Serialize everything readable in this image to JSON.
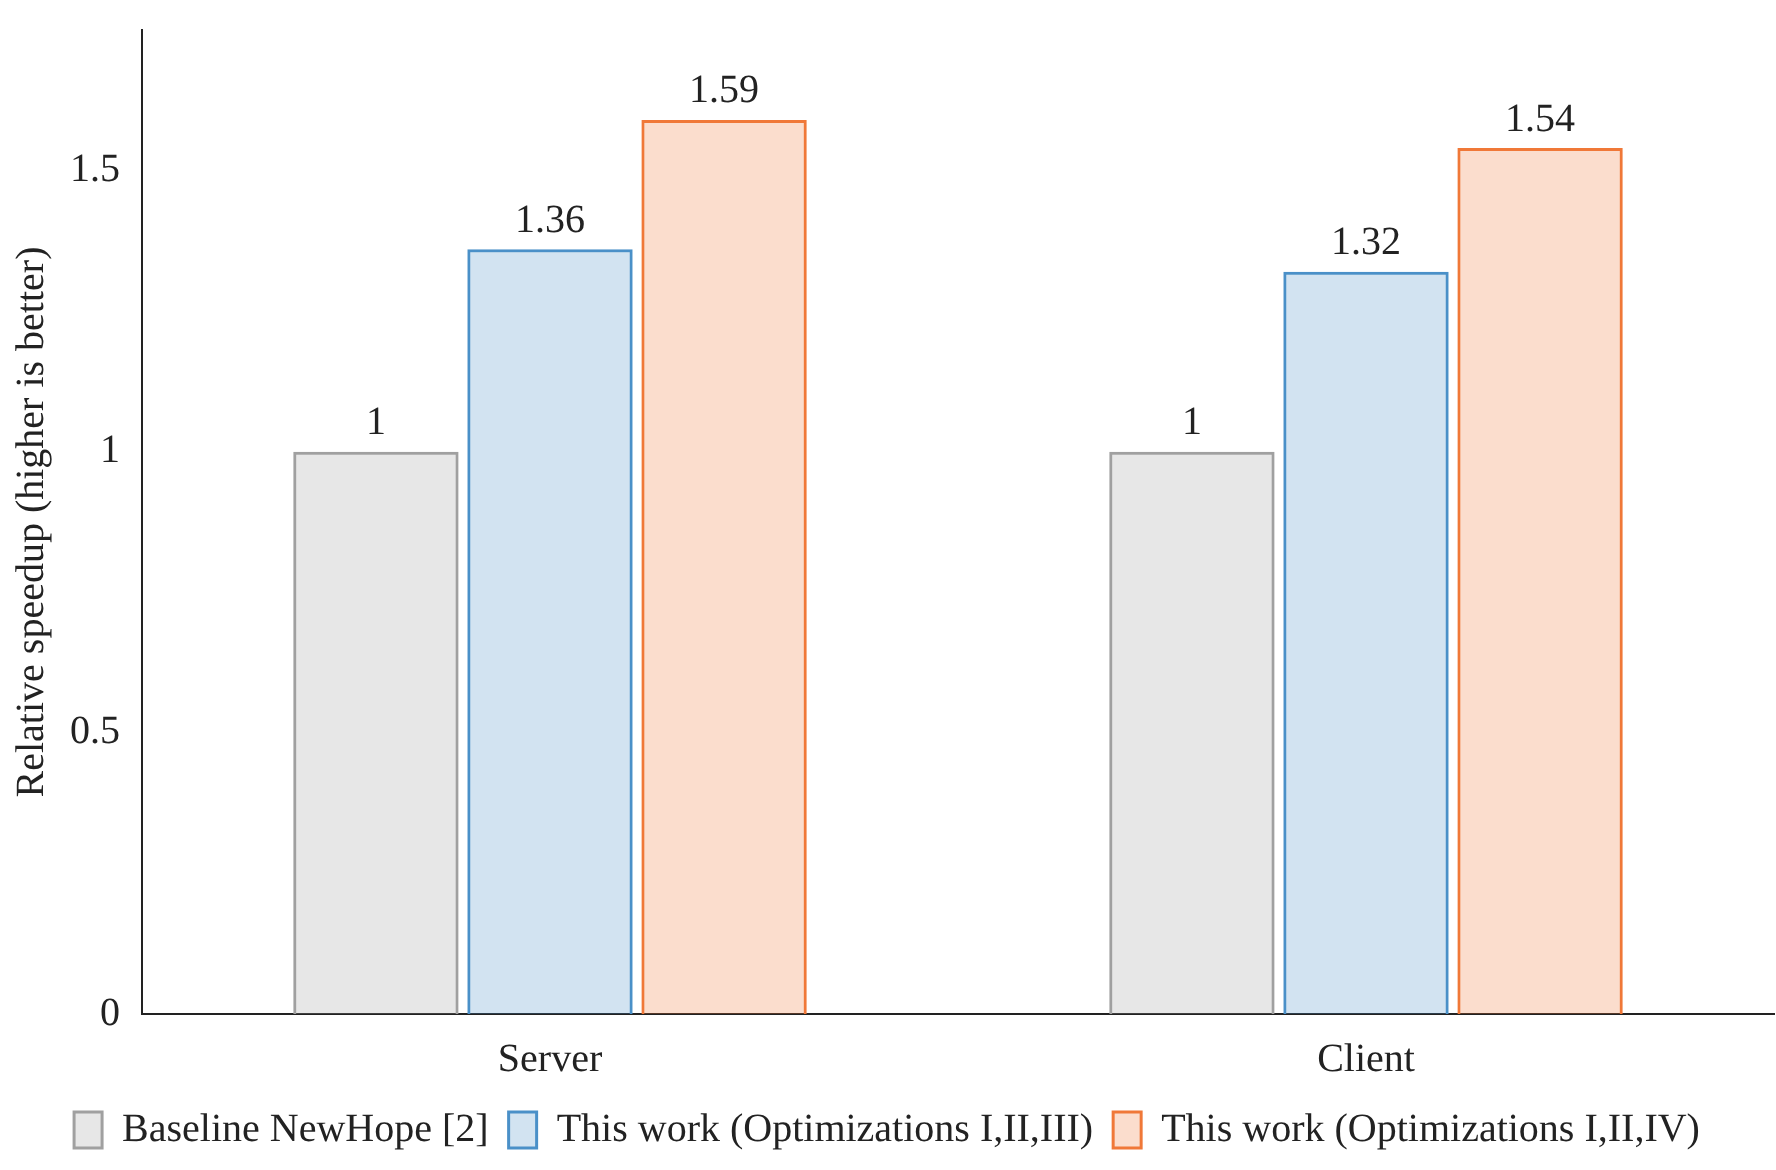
{
  "chart_data": {
    "type": "bar",
    "ylabel": "Relative speedup (higher is better)",
    "categories": [
      "Server",
      "Client"
    ],
    "series": [
      {
        "name": "Baseline NewHope [2]",
        "color": "#a0a0a0",
        "values": [
          1,
          1
        ]
      },
      {
        "name": "This work (Optimizations I,II,III)",
        "color": "#4a90c8",
        "values": [
          1.36,
          1.32
        ]
      },
      {
        "name": "This work (Optimizations I,II,IV)",
        "color": "#f07838",
        "values": [
          1.59,
          1.54
        ]
      }
    ],
    "ylim": [
      0,
      1.75
    ],
    "yticks": [
      0,
      0.5,
      1,
      1.5
    ],
    "grid": false,
    "legend": "bottom",
    "data_labels": true
  }
}
